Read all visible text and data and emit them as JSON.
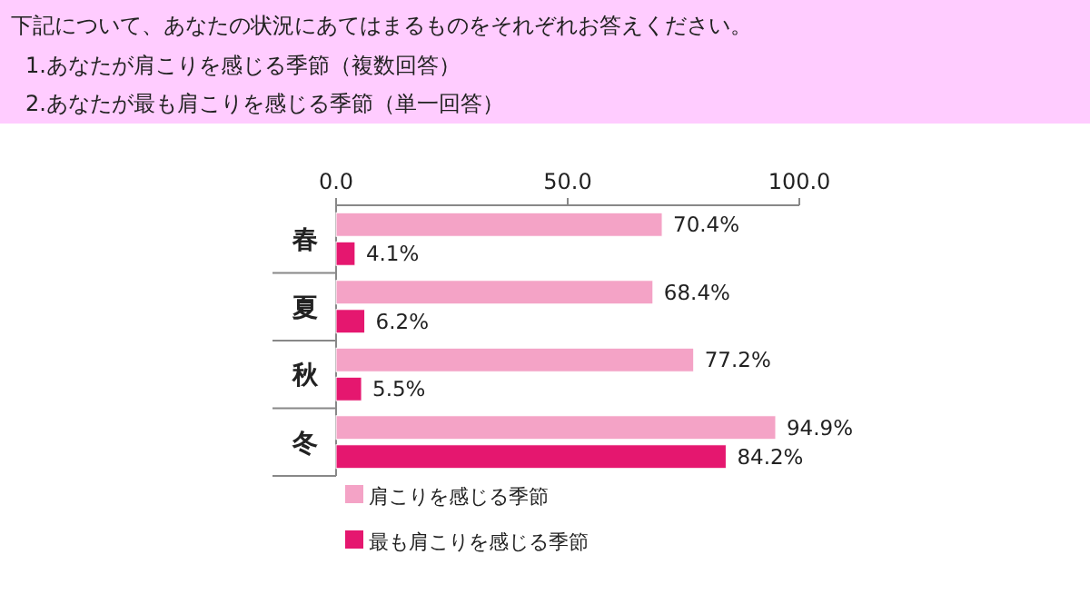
{
  "chart_data": {
    "type": "bar",
    "orientation": "horizontal",
    "title": "下記について、あなたの状況にあてはまるものをそれぞれお答えください。",
    "subtitle": "1.あなたが肩こりを感じる季節（複数回答）\n2.あなたが最も肩こりを感じる季節（単一回答）",
    "categories": [
      "春",
      "夏",
      "秋",
      "冬"
    ],
    "series": [
      {
        "name": "肩こりを感じる季節",
        "color": "#f4a3c6",
        "values": [
          70.4,
          68.4,
          77.2,
          94.9
        ],
        "value_labels": [
          "70.4%",
          "68.4%",
          "77.2%",
          "94.9%"
        ]
      },
      {
        "name": "最も肩こりを感じる季節",
        "color": "#e5176f",
        "values": [
          4.1,
          6.2,
          5.5,
          84.2
        ],
        "value_labels": [
          "4.1%",
          "6.2%",
          "5.5%",
          "84.2%"
        ]
      }
    ],
    "xlim": [
      0,
      100
    ],
    "xticks": [
      {
        "value": 0,
        "label": "0.0"
      },
      {
        "value": 50,
        "label": "50.0"
      },
      {
        "value": 100,
        "label": "100.0"
      }
    ],
    "legend": "bottom",
    "grid": false
  }
}
